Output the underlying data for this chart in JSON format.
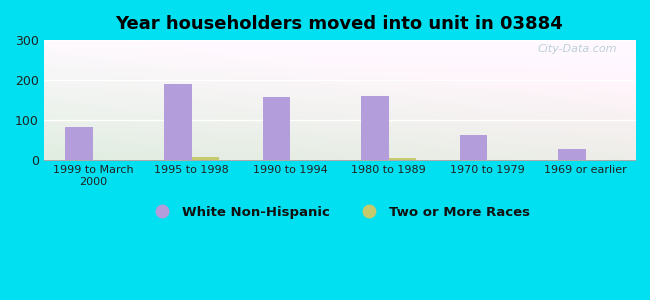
{
  "title": "Year householders moved into unit in 03884",
  "categories": [
    "1999 to March\n2000",
    "1995 to 1998",
    "1990 to 1994",
    "1980 to 1989",
    "1970 to 1979",
    "1969 or earlier"
  ],
  "white_nonhispanic": [
    82,
    191,
    157,
    160,
    63,
    27
  ],
  "two_or_more_races": [
    0,
    7,
    0,
    6,
    0,
    0
  ],
  "bar_color_white": "#b39ddb",
  "bar_color_two": "#c5ca6e",
  "background_outer": "#00e0f0",
  "watermark": "City-Data.com",
  "legend_white": "White Non-Hispanic",
  "legend_two": "Two or More Races",
  "bar_width": 0.28,
  "ylim": [
    0,
    300
  ],
  "yticks": [
    0,
    100,
    200,
    300
  ]
}
